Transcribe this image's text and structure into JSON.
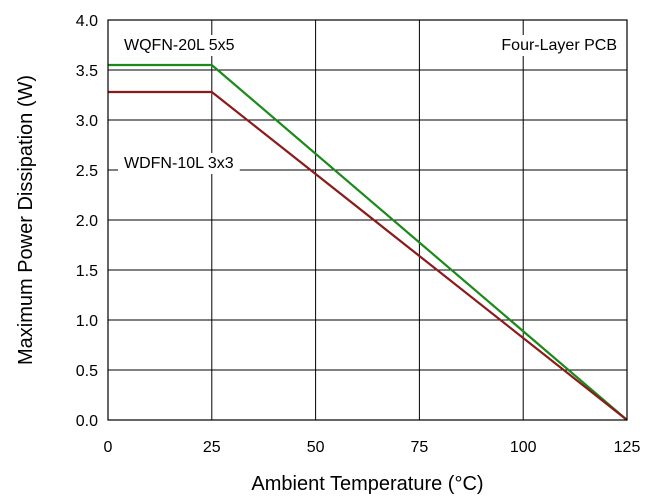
{
  "chart_data": {
    "type": "line",
    "xlabel": "Ambient Temperature (°C)",
    "ylabel": "Maximum Power Dissipation (W)",
    "xlim": [
      0,
      125
    ],
    "ylim": [
      0,
      4.0
    ],
    "xticks": [
      0,
      25,
      50,
      75,
      100,
      125
    ],
    "yticks": [
      0.0,
      0.5,
      1.0,
      1.5,
      2.0,
      2.5,
      3.0,
      3.5,
      4.0
    ],
    "xtick_labels": [
      "0",
      "25",
      "50",
      "75",
      "100",
      "125"
    ],
    "ytick_labels": [
      "0.0",
      "0.5",
      "1.0",
      "1.5",
      "2.0",
      "2.5",
      "3.0",
      "3.5",
      "4.0"
    ],
    "grid": true,
    "series": [
      {
        "name": "WQFN-20L 5x5",
        "color": "#1a8a1a",
        "x": [
          0,
          25,
          125
        ],
        "y": [
          3.55,
          3.55,
          0
        ]
      },
      {
        "name": "WDFN-10L 3x3",
        "color": "#8b1a1a",
        "x": [
          0,
          25,
          125
        ],
        "y": [
          3.28,
          3.28,
          0
        ]
      }
    ],
    "annotations": [
      "Four-Layer PCB"
    ]
  }
}
